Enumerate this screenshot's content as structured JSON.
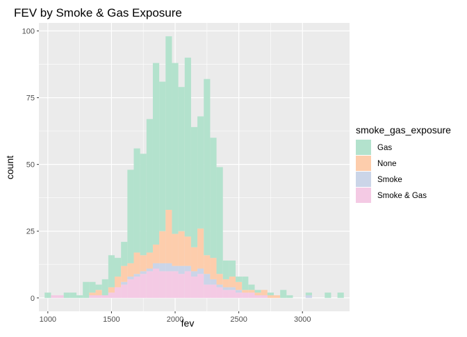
{
  "chart_data": {
    "type": "bar",
    "subtype": "stacked-histogram",
    "title": "FEV by Smoke & Gas Exposure",
    "xlabel": "fev",
    "ylabel": "count",
    "xlim": [
      930,
      3370
    ],
    "ylim": [
      -5,
      103
    ],
    "xticks": [
      1000,
      1500,
      2000,
      2500,
      3000
    ],
    "yticks": [
      0,
      25,
      50,
      75,
      100
    ],
    "grid": true,
    "legend_title": "smoke_gas_exposure",
    "legend_position": "right",
    "bin_width": 50,
    "x": [
      1000,
      1050,
      1100,
      1150,
      1200,
      1250,
      1300,
      1350,
      1400,
      1450,
      1500,
      1550,
      1600,
      1650,
      1700,
      1750,
      1800,
      1850,
      1900,
      1950,
      2000,
      2050,
      2100,
      2150,
      2200,
      2250,
      2300,
      2350,
      2400,
      2450,
      2500,
      2550,
      2600,
      2650,
      2700,
      2750,
      2800,
      2850,
      2900,
      2950,
      3000,
      3050,
      3100,
      3150,
      3200,
      3250,
      3300
    ],
    "series": [
      {
        "name": "Smoke & Gas",
        "color": "#F4CAE4",
        "values": [
          0,
          1,
          1,
          0,
          0,
          0,
          0,
          1,
          1,
          1,
          2,
          4,
          5,
          7,
          8,
          9,
          10,
          11,
          10,
          10,
          10,
          9,
          10,
          8,
          9,
          5,
          5,
          4,
          3,
          3,
          2,
          2,
          2,
          1,
          1,
          0,
          0,
          0,
          0,
          0,
          0,
          0,
          0,
          0,
          0,
          0,
          0
        ]
      },
      {
        "name": "Smoke",
        "color": "#CBD5E8",
        "values": [
          0,
          0,
          0,
          0,
          0,
          0,
          0,
          0,
          0,
          0,
          0,
          0,
          1,
          1,
          1,
          1,
          1,
          2,
          3,
          3,
          2,
          3,
          2,
          2,
          2,
          4,
          2,
          1,
          1,
          1,
          1,
          0,
          0,
          0,
          0,
          0,
          0,
          0,
          0,
          0,
          0,
          1,
          0,
          0,
          0,
          0,
          0
        ]
      },
      {
        "name": "None",
        "color": "#FDCDAC",
        "values": [
          0,
          0,
          0,
          0,
          0,
          0,
          0,
          1,
          2,
          0,
          2,
          4,
          6,
          5,
          8,
          6,
          6,
          7,
          12,
          20,
          12,
          13,
          11,
          9,
          15,
          7,
          8,
          4,
          3,
          4,
          3,
          1,
          1,
          1,
          2,
          1,
          1,
          0,
          0,
          0,
          0,
          0,
          0,
          0,
          0,
          0,
          0
        ]
      },
      {
        "name": "Gas",
        "color": "#B3E2CD",
        "values": [
          2,
          0,
          0,
          2,
          2,
          1,
          6,
          4,
          2,
          6,
          12,
          7,
          9,
          35,
          39,
          38,
          50,
          68,
          56,
          65,
          64,
          54,
          67,
          45,
          42,
          66,
          45,
          40,
          7,
          6,
          2,
          5,
          2,
          1,
          0,
          1,
          0,
          3,
          1,
          0,
          0,
          1,
          0,
          0,
          2,
          0,
          2
        ]
      }
    ]
  }
}
